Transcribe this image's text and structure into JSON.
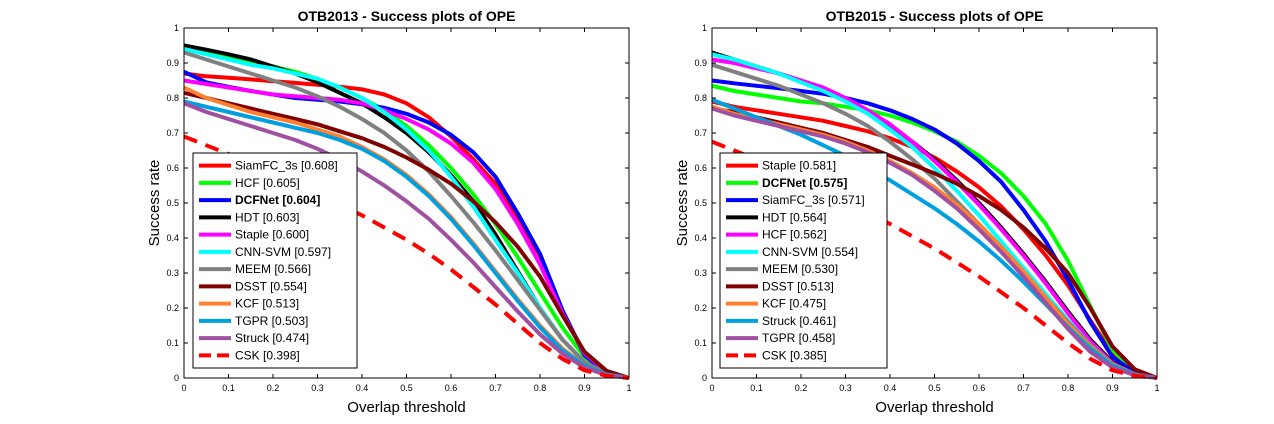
{
  "chart_data": [
    {
      "type": "line",
      "title": "OTB2013 - Success plots of OPE",
      "xlabel": "Overlap threshold",
      "ylabel": "Success rate",
      "xlim": [
        0,
        1
      ],
      "ylim": [
        0,
        1
      ],
      "xticks": [
        "0",
        "0.1",
        "0.2",
        "0.3",
        "0.4",
        "0.5",
        "0.6",
        "0.7",
        "0.8",
        "0.9",
        "1"
      ],
      "yticks": [
        "0",
        "0.1",
        "0.2",
        "0.3",
        "0.4",
        "0.5",
        "0.6",
        "0.7",
        "0.8",
        "0.9",
        "1"
      ],
      "grid": false,
      "legend_position": "lower-left",
      "x": [
        0,
        0.05,
        0.1,
        0.15,
        0.2,
        0.25,
        0.3,
        0.35,
        0.4,
        0.45,
        0.5,
        0.55,
        0.6,
        0.65,
        0.7,
        0.75,
        0.8,
        0.85,
        0.9,
        0.95,
        1
      ],
      "series": [
        {
          "name": "SiamFC_3s [0.608]",
          "color": "#ff0000",
          "dash": false,
          "bold": false,
          "values": [
            0.87,
            0.862,
            0.858,
            0.853,
            0.848,
            0.843,
            0.838,
            0.832,
            0.825,
            0.81,
            0.785,
            0.745,
            0.69,
            0.625,
            0.555,
            0.455,
            0.35,
            0.19,
            0.07,
            0.02,
            0.0
          ]
        },
        {
          "name": "HCF [0.605]",
          "color": "#00ff00",
          "dash": false,
          "bold": false,
          "values": [
            0.95,
            0.935,
            0.918,
            0.905,
            0.89,
            0.875,
            0.855,
            0.83,
            0.8,
            0.765,
            0.72,
            0.665,
            0.6,
            0.525,
            0.44,
            0.345,
            0.245,
            0.145,
            0.06,
            0.015,
            0.0
          ]
        },
        {
          "name": "DCFNet [0.604]",
          "color": "#0000ff",
          "dash": false,
          "bold": true,
          "values": [
            0.875,
            0.845,
            0.832,
            0.82,
            0.81,
            0.8,
            0.795,
            0.79,
            0.782,
            0.772,
            0.755,
            0.73,
            0.695,
            0.645,
            0.575,
            0.47,
            0.355,
            0.195,
            0.065,
            0.015,
            0.0
          ]
        },
        {
          "name": "HDT [0.603]",
          "color": "#000000",
          "dash": false,
          "bold": false,
          "values": [
            0.95,
            0.938,
            0.925,
            0.91,
            0.89,
            0.87,
            0.845,
            0.815,
            0.785,
            0.745,
            0.7,
            0.645,
            0.58,
            0.505,
            0.41,
            0.305,
            0.2,
            0.11,
            0.045,
            0.012,
            0.0
          ]
        },
        {
          "name": "Staple [0.600]",
          "color": "#ff00ff",
          "dash": false,
          "bold": false,
          "values": [
            0.85,
            0.84,
            0.83,
            0.82,
            0.81,
            0.805,
            0.8,
            0.795,
            0.785,
            0.765,
            0.74,
            0.71,
            0.67,
            0.615,
            0.54,
            0.44,
            0.325,
            0.185,
            0.07,
            0.018,
            0.0
          ]
        },
        {
          "name": "CNN-SVM [0.597]",
          "color": "#00ffff",
          "dash": false,
          "bold": false,
          "values": [
            0.94,
            0.925,
            0.91,
            0.895,
            0.885,
            0.87,
            0.855,
            0.83,
            0.8,
            0.76,
            0.71,
            0.65,
            0.575,
            0.49,
            0.395,
            0.3,
            0.2,
            0.11,
            0.045,
            0.012,
            0.0
          ]
        },
        {
          "name": "MEEM [0.566]",
          "color": "#808080",
          "dash": false,
          "bold": false,
          "values": [
            0.93,
            0.91,
            0.89,
            0.87,
            0.85,
            0.83,
            0.805,
            0.775,
            0.74,
            0.7,
            0.65,
            0.59,
            0.52,
            0.445,
            0.365,
            0.28,
            0.195,
            0.11,
            0.045,
            0.012,
            0.0
          ]
        },
        {
          "name": "DSST [0.554]",
          "color": "#800000",
          "dash": false,
          "bold": false,
          "values": [
            0.815,
            0.8,
            0.785,
            0.77,
            0.755,
            0.74,
            0.725,
            0.705,
            0.685,
            0.66,
            0.63,
            0.595,
            0.555,
            0.505,
            0.445,
            0.375,
            0.29,
            0.18,
            0.075,
            0.02,
            0.0
          ]
        },
        {
          "name": "KCF [0.513]",
          "color": "#ff8030",
          "dash": false,
          "bold": false,
          "values": [
            0.83,
            0.8,
            0.78,
            0.76,
            0.745,
            0.73,
            0.71,
            0.69,
            0.66,
            0.625,
            0.58,
            0.525,
            0.46,
            0.385,
            0.305,
            0.225,
            0.15,
            0.085,
            0.035,
            0.01,
            0.0
          ]
        },
        {
          "name": "TGPR [0.503]",
          "color": "#00a0e0",
          "dash": false,
          "bold": false,
          "values": [
            0.79,
            0.775,
            0.76,
            0.745,
            0.73,
            0.715,
            0.7,
            0.68,
            0.655,
            0.62,
            0.575,
            0.52,
            0.455,
            0.38,
            0.3,
            0.22,
            0.145,
            0.08,
            0.035,
            0.01,
            0.0
          ]
        },
        {
          "name": "Struck [0.474]",
          "color": "#a050a0",
          "dash": false,
          "bold": false,
          "values": [
            0.785,
            0.76,
            0.74,
            0.72,
            0.7,
            0.68,
            0.655,
            0.625,
            0.59,
            0.55,
            0.505,
            0.455,
            0.395,
            0.33,
            0.26,
            0.19,
            0.125,
            0.07,
            0.03,
            0.008,
            0.0
          ]
        },
        {
          "name": "CSK [0.398]",
          "color": "#ff0000",
          "dash": true,
          "bold": false,
          "values": [
            0.69,
            0.665,
            0.64,
            0.615,
            0.585,
            0.555,
            0.525,
            0.495,
            0.465,
            0.43,
            0.395,
            0.355,
            0.31,
            0.26,
            0.21,
            0.155,
            0.1,
            0.055,
            0.022,
            0.006,
            0.0
          ]
        }
      ]
    },
    {
      "type": "line",
      "title": "OTB2015 - Success plots of OPE",
      "xlabel": "Overlap threshold",
      "ylabel": "Success rate",
      "xlim": [
        0,
        1
      ],
      "ylim": [
        0,
        1
      ],
      "xticks": [
        "0",
        "0.1",
        "0.2",
        "0.3",
        "0.4",
        "0.5",
        "0.6",
        "0.7",
        "0.8",
        "0.9",
        "1"
      ],
      "yticks": [
        "0",
        "0.1",
        "0.2",
        "0.3",
        "0.4",
        "0.5",
        "0.6",
        "0.7",
        "0.8",
        "0.9",
        "1"
      ],
      "grid": false,
      "legend_position": "lower-left",
      "x": [
        0,
        0.05,
        0.1,
        0.15,
        0.2,
        0.25,
        0.3,
        0.35,
        0.4,
        0.45,
        0.5,
        0.55,
        0.6,
        0.65,
        0.7,
        0.75,
        0.8,
        0.85,
        0.9,
        0.95,
        1
      ],
      "series": [
        {
          "name": "Staple [0.581]",
          "color": "#ff0000",
          "dash": false,
          "bold": false,
          "values": [
            0.79,
            0.775,
            0.765,
            0.755,
            0.745,
            0.735,
            0.72,
            0.705,
            0.685,
            0.66,
            0.63,
            0.59,
            0.545,
            0.49,
            0.425,
            0.35,
            0.265,
            0.165,
            0.07,
            0.02,
            0.0
          ]
        },
        {
          "name": "DCFNet [0.575]",
          "color": "#00ff00",
          "dash": false,
          "bold": true,
          "values": [
            0.835,
            0.82,
            0.81,
            0.8,
            0.79,
            0.785,
            0.775,
            0.765,
            0.75,
            0.73,
            0.705,
            0.675,
            0.635,
            0.585,
            0.52,
            0.44,
            0.335,
            0.205,
            0.08,
            0.02,
            0.0
          ]
        },
        {
          "name": "SiamFC_3s [0.571]",
          "color": "#0000ff",
          "dash": false,
          "bold": false,
          "values": [
            0.85,
            0.842,
            0.835,
            0.828,
            0.82,
            0.812,
            0.8,
            0.785,
            0.765,
            0.74,
            0.71,
            0.67,
            0.62,
            0.56,
            0.48,
            0.39,
            0.28,
            0.16,
            0.06,
            0.015,
            0.0
          ]
        },
        {
          "name": "HDT [0.564]",
          "color": "#000000",
          "dash": false,
          "bold": false,
          "values": [
            0.93,
            0.91,
            0.89,
            0.87,
            0.85,
            0.825,
            0.795,
            0.76,
            0.72,
            0.675,
            0.625,
            0.565,
            0.5,
            0.43,
            0.355,
            0.275,
            0.19,
            0.11,
            0.045,
            0.012,
            0.0
          ]
        },
        {
          "name": "HCF [0.562]",
          "color": "#ff00ff",
          "dash": false,
          "bold": false,
          "values": [
            0.91,
            0.9,
            0.885,
            0.87,
            0.85,
            0.83,
            0.8,
            0.765,
            0.725,
            0.675,
            0.62,
            0.56,
            0.495,
            0.425,
            0.35,
            0.27,
            0.185,
            0.105,
            0.042,
            0.011,
            0.0
          ]
        },
        {
          "name": "CNN-SVM [0.554]",
          "color": "#00ffff",
          "dash": false,
          "bold": false,
          "values": [
            0.925,
            0.91,
            0.89,
            0.87,
            0.845,
            0.82,
            0.79,
            0.755,
            0.71,
            0.66,
            0.6,
            0.535,
            0.465,
            0.39,
            0.315,
            0.24,
            0.165,
            0.095,
            0.04,
            0.01,
            0.0
          ]
        },
        {
          "name": "MEEM [0.530]",
          "color": "#808080",
          "dash": false,
          "bold": false,
          "values": [
            0.895,
            0.875,
            0.855,
            0.835,
            0.81,
            0.785,
            0.755,
            0.72,
            0.675,
            0.625,
            0.57,
            0.505,
            0.44,
            0.37,
            0.3,
            0.23,
            0.16,
            0.095,
            0.04,
            0.01,
            0.0
          ]
        },
        {
          "name": "DSST [0.513]",
          "color": "#800000",
          "dash": false,
          "bold": false,
          "values": [
            0.77,
            0.76,
            0.745,
            0.73,
            0.715,
            0.7,
            0.68,
            0.66,
            0.635,
            0.61,
            0.585,
            0.555,
            0.52,
            0.48,
            0.43,
            0.37,
            0.3,
            0.2,
            0.09,
            0.025,
            0.0
          ]
        },
        {
          "name": "KCF [0.475]",
          "color": "#ff8030",
          "dash": false,
          "bold": false,
          "values": [
            0.775,
            0.755,
            0.74,
            0.725,
            0.71,
            0.695,
            0.675,
            0.65,
            0.62,
            0.585,
            0.545,
            0.495,
            0.44,
            0.375,
            0.305,
            0.23,
            0.155,
            0.09,
            0.038,
            0.01,
            0.0
          ]
        },
        {
          "name": "Struck [0.461]",
          "color": "#00a0e0",
          "dash": false,
          "bold": false,
          "values": [
            0.795,
            0.77,
            0.745,
            0.72,
            0.695,
            0.665,
            0.635,
            0.6,
            0.565,
            0.525,
            0.485,
            0.44,
            0.39,
            0.335,
            0.275,
            0.21,
            0.145,
            0.085,
            0.036,
            0.01,
            0.0
          ]
        },
        {
          "name": "TGPR [0.458]",
          "color": "#a050a0",
          "dash": false,
          "bold": false,
          "values": [
            0.77,
            0.75,
            0.735,
            0.72,
            0.705,
            0.69,
            0.67,
            0.645,
            0.615,
            0.58,
            0.535,
            0.485,
            0.425,
            0.36,
            0.29,
            0.215,
            0.14,
            0.075,
            0.03,
            0.008,
            0.0
          ]
        },
        {
          "name": "CSK [0.385]",
          "color": "#ff0000",
          "dash": true,
          "bold": false,
          "values": [
            0.675,
            0.65,
            0.625,
            0.6,
            0.57,
            0.54,
            0.51,
            0.475,
            0.44,
            0.405,
            0.37,
            0.33,
            0.29,
            0.245,
            0.2,
            0.15,
            0.1,
            0.055,
            0.022,
            0.006,
            0.0
          ]
        }
      ]
    }
  ]
}
